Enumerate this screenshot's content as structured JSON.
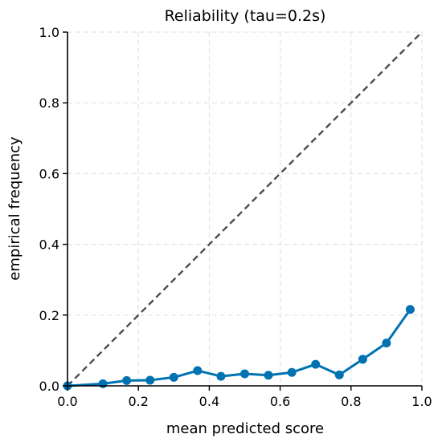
{
  "chart_data": {
    "type": "line",
    "title": "Reliability (tau=0.2s)",
    "xlabel": "mean predicted score",
    "ylabel": "empirical frequency",
    "xlim": [
      0.0,
      1.0
    ],
    "ylim": [
      0.0,
      1.0
    ],
    "x_ticks": [
      "0.0",
      "0.2",
      "0.4",
      "0.6",
      "0.8",
      "1.0"
    ],
    "y_ticks": [
      "0.0",
      "0.2",
      "0.4",
      "0.6",
      "0.8",
      "1.0"
    ],
    "grid": true,
    "reference_line": {
      "style": "dashed",
      "color": "#4d4d4d",
      "x": [
        0.0,
        1.0
      ],
      "y": [
        0.0,
        1.0
      ]
    },
    "series": [
      {
        "color": "#0072b2",
        "x": [
          0.0,
          0.1,
          0.167,
          0.233,
          0.3,
          0.367,
          0.433,
          0.5,
          0.567,
          0.633,
          0.7,
          0.767,
          0.833,
          0.9,
          0.967
        ],
        "y": [
          0.0,
          0.006,
          0.015,
          0.016,
          0.024,
          0.043,
          0.027,
          0.034,
          0.03,
          0.038,
          0.061,
          0.031,
          0.075,
          0.121,
          0.216
        ]
      }
    ]
  }
}
